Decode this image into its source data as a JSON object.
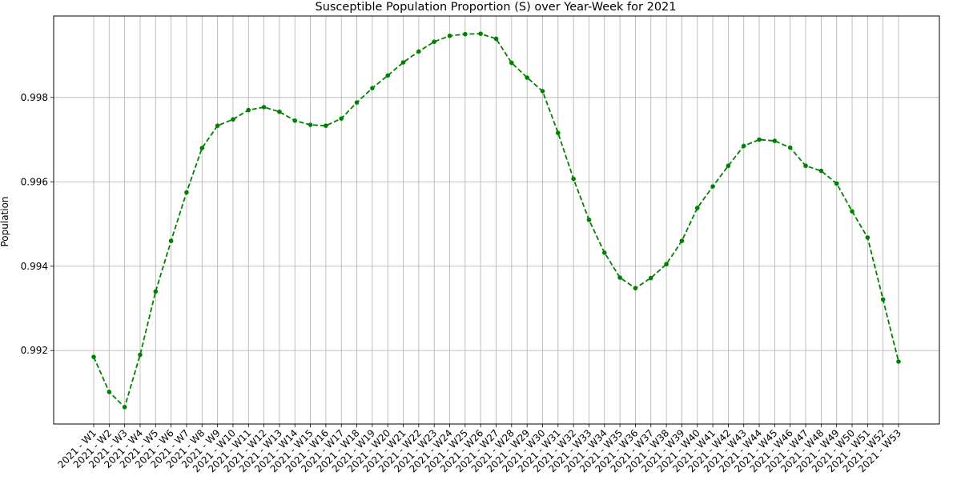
{
  "chart_data": {
    "type": "line",
    "title": "Susceptible Population Proportion (S) over Year-Week for 2021",
    "xlabel": "",
    "ylabel": "Population",
    "categories": [
      "2021 - W1",
      "2021 - W2",
      "2021 - W3",
      "2021 - W4",
      "2021 - W5",
      "2021 - W6",
      "2021 - W7",
      "2021 - W8",
      "2021 - W9",
      "2021 - W10",
      "2021 - W11",
      "2021 - W12",
      "2021 - W13",
      "2021 - W14",
      "2021 - W15",
      "2021 - W16",
      "2021 - W17",
      "2021 - W18",
      "2021 - W19",
      "2021 - W20",
      "2021 - W21",
      "2021 - W22",
      "2021 - W23",
      "2021 - W24",
      "2021 - W25",
      "2021 - W26",
      "2021 - W27",
      "2021 - W28",
      "2021 - W29",
      "2021 - W30",
      "2021 - W31",
      "2021 - W32",
      "2021 - W33",
      "2021 - W34",
      "2021 - W35",
      "2021 - W36",
      "2021 - W37",
      "2021 - W38",
      "2021 - W39",
      "2021 - W40",
      "2021 - W41",
      "2021 - W42",
      "2021 - W43",
      "2021 - W44",
      "2021 - W45",
      "2021 - W46",
      "2021 - W47",
      "2021 - W48",
      "2021 - W49",
      "2021 - W50",
      "2021 - W51",
      "2021 - W52",
      "2021 - W53"
    ],
    "series": [
      {
        "values": [
          0.99185,
          0.99102,
          0.99066,
          0.9919,
          0.9934,
          0.9946,
          0.99575,
          0.9968,
          0.99733,
          0.99748,
          0.9977,
          0.99777,
          0.99766,
          0.99745,
          0.99735,
          0.99733,
          0.9975,
          0.99788,
          0.99822,
          0.99852,
          0.99883,
          0.99909,
          0.99932,
          0.99946,
          0.9995,
          0.99951,
          0.99939,
          0.99882,
          0.99847,
          0.99815,
          0.99716,
          0.99607,
          0.9951,
          0.99432,
          0.99373,
          0.99348,
          0.99372,
          0.99405,
          0.9946,
          0.99538,
          0.99589,
          0.99638,
          0.99685,
          0.997,
          0.99697,
          0.99681,
          0.99638,
          0.99626,
          0.99596,
          0.9953,
          0.99468,
          0.99321,
          0.99174
        ]
      }
    ],
    "ylim": [
      0.99026,
      0.99993
    ],
    "yticks": [
      "0.992",
      "0.994",
      "0.996",
      "0.998"
    ],
    "ytick_values": [
      0.992,
      0.994,
      0.996,
      0.998
    ],
    "grid": true,
    "line_color": "#008000",
    "line_style": "dashed",
    "marker": "circle"
  }
}
